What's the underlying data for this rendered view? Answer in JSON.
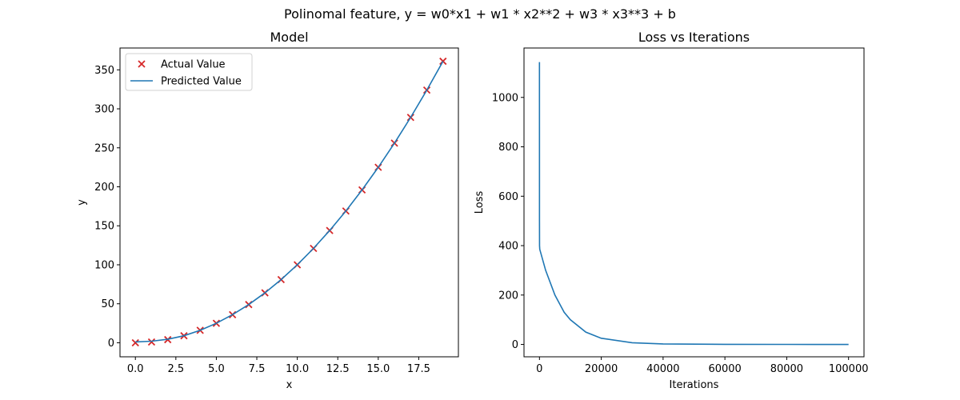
{
  "figure": {
    "suptitle": "Polinomal feature, y = w0*x1 + w1 * x2**2 + w3 * x3**3 + b"
  },
  "colors": {
    "line": "#1f77b4",
    "marker": "#d62728"
  },
  "chart_data": [
    {
      "type": "scatter",
      "title": "Model",
      "xlabel": "x",
      "ylabel": "y",
      "xlim": [
        -0.95,
        19.95
      ],
      "ylim": [
        -18,
        378
      ],
      "xticks": [
        0.0,
        2.5,
        5.0,
        7.5,
        10.0,
        12.5,
        15.0,
        17.5
      ],
      "xtick_labels": [
        "0.0",
        "2.5",
        "5.0",
        "7.5",
        "10.0",
        "12.5",
        "15.0",
        "17.5"
      ],
      "yticks": [
        0,
        50,
        100,
        150,
        200,
        250,
        300,
        350
      ],
      "ytick_labels": [
        "0",
        "50",
        "100",
        "150",
        "200",
        "250",
        "300",
        "350"
      ],
      "legend": {
        "position": "upper-left",
        "entries": [
          "Actual Value",
          "Predicted Value"
        ]
      },
      "series": [
        {
          "name": "Actual Value",
          "kind": "scatter",
          "marker": "x",
          "x": [
            0,
            1,
            2,
            3,
            4,
            5,
            6,
            7,
            8,
            9,
            10,
            11,
            12,
            13,
            14,
            15,
            16,
            17,
            18,
            19
          ],
          "y": [
            0,
            1,
            4,
            9,
            16,
            25,
            36,
            49,
            64,
            81,
            100,
            121,
            144,
            169,
            196,
            225,
            256,
            289,
            324,
            361
          ]
        },
        {
          "name": "Predicted Value",
          "kind": "line",
          "x": [
            0,
            1,
            2,
            3,
            4,
            5,
            6,
            7,
            8,
            9,
            10,
            11,
            12,
            13,
            14,
            15,
            16,
            17,
            18,
            19
          ],
          "y": [
            1,
            2,
            4.5,
            9,
            16,
            25,
            36,
            49,
            64,
            81,
            100,
            121,
            144,
            169,
            196,
            225,
            256,
            289,
            324,
            361
          ]
        }
      ]
    },
    {
      "type": "line",
      "title": "Loss vs Iterations",
      "xlabel": "Iterations",
      "ylabel": "Loss",
      "xlim": [
        -5000,
        105000
      ],
      "ylim": [
        -50,
        1200
      ],
      "xticks": [
        0,
        20000,
        40000,
        60000,
        80000,
        100000
      ],
      "xtick_labels": [
        "0",
        "20000",
        "40000",
        "60000",
        "80000",
        "100000"
      ],
      "yticks": [
        0,
        200,
        400,
        600,
        800,
        1000
      ],
      "ytick_labels": [
        "0",
        "200",
        "400",
        "600",
        "800",
        "1000"
      ],
      "series": [
        {
          "kind": "line",
          "x": [
            0,
            10,
            30,
            100,
            2000,
            5000,
            8000,
            10000,
            15000,
            20000,
            30000,
            40000,
            60000,
            80000,
            100000
          ],
          "y": [
            1143,
            500,
            400,
            385,
            300,
            200,
            130,
            100,
            50,
            25,
            7,
            2,
            0.5,
            0.2,
            0.1
          ]
        }
      ]
    }
  ]
}
